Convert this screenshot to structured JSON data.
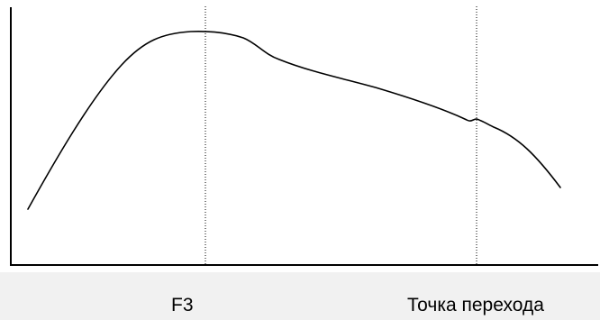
{
  "diagram": {
    "labels": {
      "f3": "F3",
      "transition_point": "Точка перехода"
    }
  }
}
